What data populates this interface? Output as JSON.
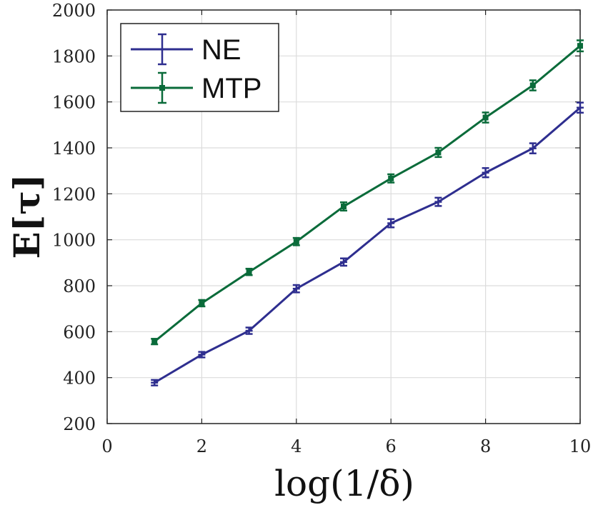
{
  "chart_data": {
    "type": "line",
    "title": "",
    "xlabel": "log(1/δ)",
    "ylabel": "E[τ]",
    "xlim": [
      0,
      10
    ],
    "ylim": [
      200,
      2000
    ],
    "xticks": [
      0,
      2,
      4,
      6,
      8,
      10
    ],
    "yticks": [
      200,
      400,
      600,
      800,
      1000,
      1200,
      1400,
      1600,
      1800,
      2000
    ],
    "grid": true,
    "legend_position": "top-left",
    "x": [
      1,
      2,
      3,
      4,
      5,
      6,
      7,
      8,
      9,
      10
    ],
    "series": [
      {
        "name": "NE",
        "color": "#2e2e8f",
        "marker": "plus",
        "values": [
          378,
          500,
          604,
          787,
          903,
          1072,
          1165,
          1292,
          1398,
          1575
        ],
        "errors": [
          12,
          12,
          14,
          16,
          16,
          18,
          18,
          20,
          22,
          22
        ]
      },
      {
        "name": "MTP",
        "color": "#0a6b3a",
        "marker": "square",
        "values": [
          557,
          724,
          860,
          992,
          1145,
          1267,
          1380,
          1532,
          1672,
          1844
        ],
        "errors": [
          12,
          14,
          14,
          16,
          18,
          18,
          20,
          22,
          22,
          24
        ]
      }
    ]
  }
}
